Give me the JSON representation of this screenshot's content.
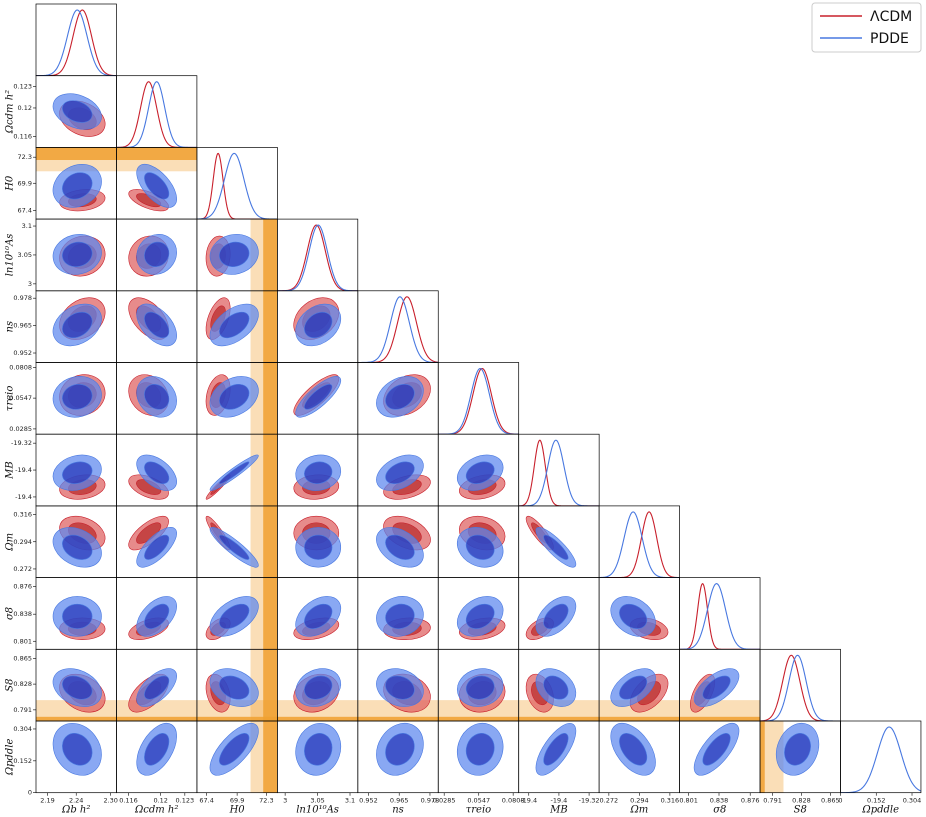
{
  "chart_data": {
    "type": "corner",
    "legend": "upper right",
    "params": [
      {
        "label": "Ωb h²",
        "lim": [
          2.17,
          2.31
        ],
        "ticks": [
          2.19,
          2.24,
          {
            "value": 2.3,
            "label": "2.30"
          }
        ]
      },
      {
        "label": "Ωcdm h²",
        "lim": [
          0.1145,
          0.1245
        ],
        "ticks": [
          0.116,
          0.12,
          0.123
        ]
      },
      {
        "label": "H0",
        "lim": [
          66.6,
          73.2
        ],
        "ticks": [
          67.4,
          69.9,
          72.3
        ],
        "band": {
          "inner": [
            72.04,
            74.04
          ],
          "outer": [
            71.0,
            75.08
          ],
          "color": "#f0a030"
        }
      },
      {
        "label": "ln10¹⁰As",
        "lim": [
          2.988,
          3.112
        ],
        "ticks": [
          3,
          3.05,
          3.1
        ]
      },
      {
        "label": "ns",
        "lim": [
          0.9475,
          0.9815
        ],
        "ticks": [
          0.952,
          0.965,
          0.978
        ]
      },
      {
        "label": "τreio",
        "lim": [
          0.024,
          0.085
        ],
        "ticks": [
          0.0285,
          0.0547,
          0.0808
        ]
      },
      {
        "label": "MB",
        "lim": [
          -19.46,
          -19.3
        ],
        "ticks": [
          {
            "value": -19.44,
            "label": "-19.4"
          },
          {
            "value": -19.38,
            "label": "-19.4"
          },
          -19.32
        ]
      },
      {
        "label": "Ωm",
        "lim": [
          0.265,
          0.323
        ],
        "ticks": [
          0.272,
          0.294,
          0.316
        ]
      },
      {
        "label": "σ8",
        "lim": [
          0.79,
          0.888
        ],
        "ticks": [
          0.801,
          0.838,
          0.876
        ]
      },
      {
        "label": "S8",
        "lim": [
          0.775,
          0.878
        ],
        "ticks": [
          0.791,
          0.828,
          0.865
        ],
        "band": {
          "inner": [
            0.757,
            0.781
          ],
          "outer": [
            0.733,
            0.805
          ],
          "color": "#f0a030"
        }
      },
      {
        "label": "Ωpddle",
        "lim": [
          0,
          0.342
        ],
        "ticks": [
          0,
          0.152,
          0.304
        ]
      }
    ],
    "series": [
      {
        "name": "ΛCDM",
        "color": "#c8202c",
        "fill_colors": [
          "#de5e5e",
          "#b82a2a"
        ],
        "mean": [
          2.2506,
          0.1185,
          68.34,
          3.048,
          0.9683,
          0.0573,
          -19.418,
          0.301,
          0.818,
          0.815,
          null
        ],
        "sigma": [
          0.016,
          0.001,
          0.4,
          0.014,
          0.004,
          0.007,
          0.011,
          0.0055,
          0.006,
          0.011,
          null
        ]
      },
      {
        "name": "PDDE",
        "color": "#4878e0",
        "fill_colors": [
          "#5b86ee",
          "#2434b8"
        ],
        "mean": [
          2.2418,
          0.1195,
          69.66,
          3.051,
          0.9653,
          0.0558,
          -19.386,
          0.2895,
          0.835,
          0.823,
          0.207
        ],
        "sigma": [
          0.017,
          0.001,
          0.8,
          0.014,
          0.004,
          0.007,
          0.016,
          0.0065,
          0.011,
          0.011,
          0.05
        ]
      }
    ],
    "correlations": [
      [
        -0.3
      ],
      [
        0.2,
        -0.6
      ],
      [
        0.1,
        0.1,
        0.1
      ],
      [
        0.3,
        -0.5,
        0.5,
        0.3
      ],
      [
        0.1,
        -0.2,
        0.3,
        0.8,
        0.3
      ],
      [
        0.2,
        -0.5,
        0.95,
        0.1,
        0.4,
        0.3
      ],
      [
        -0.3,
        0.7,
        -0.9,
        0,
        -0.4,
        -0.2,
        -0.85
      ],
      [
        0,
        0.5,
        0.5,
        0.4,
        0.1,
        0.3,
        0.5,
        -0.3
      ],
      [
        -0.3,
        0.6,
        -0.3,
        0.2,
        -0.2,
        0.1,
        -0.3,
        0.5,
        0.6
      ],
      [
        -0.2,
        0.5,
        0.7,
        0.1,
        0.2,
        0.1,
        0.7,
        -0.5,
        0.7,
        0.2
      ]
    ]
  }
}
